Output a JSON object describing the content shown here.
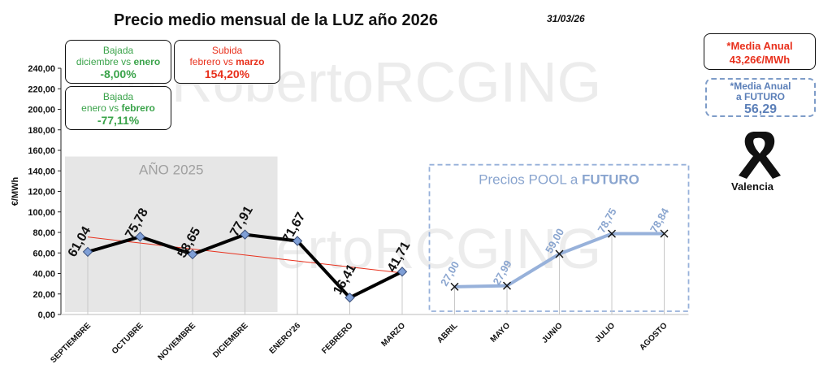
{
  "header": {
    "title": "Precio medio mensual de la LUZ año 2026",
    "date": "31/03/26"
  },
  "boxes": {
    "bajada1": {
      "line1": "Bajada",
      "line2_prefix": "diciembre vs ",
      "line2_bold": "enero",
      "value": "-8,00%"
    },
    "subida": {
      "line1": "Subida",
      "line2_prefix": "febrero vs ",
      "line2_bold": "marzo",
      "value": "154,20%"
    },
    "bajada2": {
      "line1": "Bajada",
      "line2_prefix": "enero vs ",
      "line2_bold": "febrero",
      "value": "-77,11%"
    },
    "media_anual": {
      "label": "*Media Anual",
      "value": "43,26€/MWh"
    },
    "media_futuro": {
      "label1": "*Media Anual",
      "label2": "a FUTURO",
      "value": "56,29"
    }
  },
  "ribbon": {
    "icon": "mourning-ribbon-icon",
    "label": "Valencia"
  },
  "watermark": "@RobertoRCGING",
  "colors": {
    "actual_line": "#000000",
    "marker_fill": "#7f9fd6",
    "future_line": "#97b1da",
    "future_text": "#8aa5cf",
    "trend_line": "#e8301c",
    "shade_2025": "#e6e6e6",
    "green": "#3aa34a",
    "red": "#e8301c"
  },
  "chart_data": {
    "type": "line",
    "title": "",
    "ylabel": "€/MWh",
    "xlabel": "",
    "ylim": [
      0,
      240
    ],
    "ytick_step": 20,
    "ytick_labels": [
      "0,00",
      "20,00",
      "40,00",
      "60,00",
      "80,00",
      "100,00",
      "120,00",
      "140,00",
      "160,00",
      "180,00",
      "200,00",
      "220,00",
      "240,00"
    ],
    "grid": false,
    "categories": [
      "SEPTIEMBRE",
      "OCTUBRE",
      "NOVIEMBRE",
      "DICIEMBRE",
      "ENERO'26",
      "FEBRERO",
      "MARZO",
      "ABRIL",
      "MAYO",
      "JUNIO",
      "JULIO",
      "AGOSTO"
    ],
    "series": [
      {
        "values": [
          61.04,
          75.78,
          58.65,
          77.91,
          71.67,
          16.41,
          41.71,
          null,
          null,
          null,
          null,
          null
        ],
        "labels": [
          "61,04",
          "75,78",
          "58,65",
          "77,91",
          "71,67",
          "16,41",
          "41,71",
          null,
          null,
          null,
          null,
          null
        ]
      },
      {
        "values": [
          null,
          null,
          null,
          null,
          null,
          null,
          null,
          27.0,
          27.99,
          59.0,
          78.75,
          78.84
        ],
        "labels": [
          null,
          null,
          null,
          null,
          null,
          null,
          null,
          "27,00",
          "27,99",
          "59,00",
          "78,75",
          "78,84"
        ]
      }
    ],
    "trendline": {
      "from_category": 0,
      "to_category": 6,
      "from_value": 75.5,
      "to_value": 40.5
    },
    "annotations": [
      {
        "text": "AÑO 2025",
        "region": [
          "SEPTIEMBRE",
          "DICIEMBRE"
        ]
      },
      {
        "text_prefix": "Precios POOL a ",
        "text_bold": "FUTURO",
        "region": [
          "ABRIL",
          "AGOSTO"
        ]
      }
    ]
  }
}
